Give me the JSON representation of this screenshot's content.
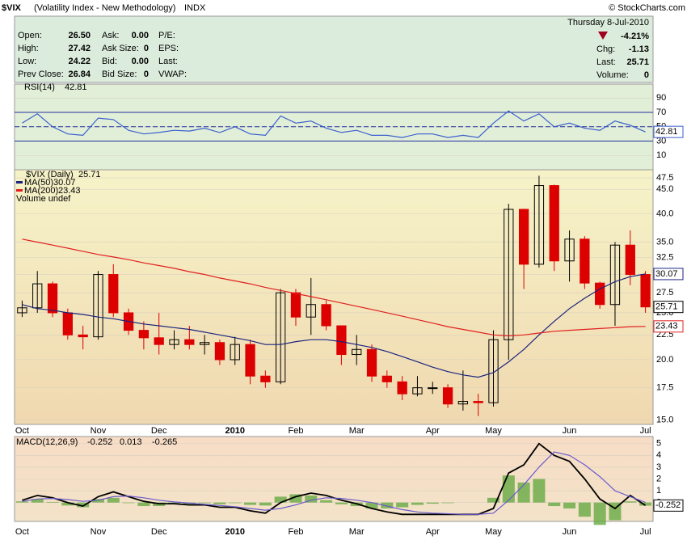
{
  "header": {
    "symbol": "$VIX",
    "name": "(Volatility Index - New Methodology)",
    "exchange": "INDX",
    "credit": "© StockCharts.com"
  },
  "quote": {
    "rows": [
      [
        "Open:",
        "26.50",
        "Ask:",
        "0.00",
        "P/E:"
      ],
      [
        "High:",
        "27.42",
        "Ask Size:",
        "0",
        "EPS:"
      ],
      [
        "Low:",
        "24.22",
        "Bid:",
        "0.00",
        "Last:"
      ],
      [
        "Prev Close:",
        "26.84",
        "Bid Size:",
        "0",
        "VWAP:"
      ]
    ],
    "date": "Thursday  8-Jul-2010",
    "change_pct": "-4.21%",
    "right": [
      [
        "Chg:",
        "-1.13"
      ],
      [
        "Last:",
        "25.71"
      ],
      [
        "Volume:",
        "0"
      ]
    ]
  },
  "chart_data": [
    {
      "type": "line",
      "ylim": [
        -10,
        105
      ],
      "yticks": [
        10,
        30,
        50,
        70,
        90
      ],
      "ref_lines": [
        30,
        50,
        70
      ],
      "series": [
        {
          "name": "RSI(14)",
          "color": "#3a5fcd",
          "values": [
            55,
            68,
            50,
            40,
            38,
            62,
            60,
            45,
            40,
            42,
            45,
            44,
            48,
            42,
            50,
            40,
            38,
            65,
            55,
            58,
            48,
            42,
            45,
            38,
            38,
            35,
            40,
            40,
            35,
            38,
            35,
            55,
            72,
            58,
            68,
            50,
            55,
            48,
            45,
            58,
            52,
            42.81
          ]
        }
      ]
    },
    {
      "type": "candlestick",
      "label": "$VIX (Daily)",
      "log": true,
      "ylim": [
        14.7,
        49
      ],
      "yticks": [
        {
          "value": 15,
          "label": "15.0"
        },
        {
          "value": 17.5,
          "label": "17.5"
        },
        {
          "value": 20,
          "label": "20.0"
        },
        {
          "value": 22.5,
          "label": "22.5"
        },
        {
          "value": 25,
          "label": "25.0"
        },
        {
          "value": 27.5,
          "label": "27.5"
        },
        {
          "value": 30,
          "label": "30.0"
        },
        {
          "value": 32.5,
          "label": "32.5"
        },
        {
          "value": 35,
          "label": "35.0"
        },
        {
          "value": 40,
          "label": "40.0"
        },
        {
          "value": 45,
          "label": "45.0"
        },
        {
          "value": 47.5,
          "label": "47.5"
        }
      ],
      "up_color": "#000000",
      "down_color": "#dd0000",
      "open": [
        25,
        25.6,
        28.7,
        25,
        22.5,
        22.3,
        30,
        25,
        23,
        22.2,
        21.5,
        22,
        21.5,
        21.7,
        20,
        21.5,
        18.5,
        18,
        27.5,
        24.5,
        26,
        23.5,
        20.5,
        21,
        18.5,
        18,
        17,
        17.5,
        17.5,
        16.2,
        16.4,
        16.3,
        22,
        40.9,
        31.5,
        45.8,
        32,
        35.5,
        28.8,
        26,
        34.5,
        30
      ],
      "high": [
        26.5,
        30.5,
        29,
        25.5,
        23.5,
        30.5,
        31.5,
        25.5,
        24,
        25,
        23,
        23.5,
        22.5,
        22,
        22.3,
        22,
        19,
        28,
        28,
        29.5,
        26.5,
        23.5,
        22.5,
        21.5,
        19,
        18.5,
        18.5,
        18,
        17.8,
        19,
        17,
        23,
        42,
        41,
        48,
        46,
        37,
        36,
        29,
        35,
        37,
        30.5
      ],
      "low": [
        24.5,
        25,
        24.5,
        22,
        21,
        22,
        24.5,
        22.5,
        21,
        20.5,
        21,
        21,
        20.5,
        19.5,
        19.5,
        17.8,
        17.5,
        17.8,
        23.5,
        22.5,
        23,
        19.5,
        19.5,
        18,
        17.5,
        16.5,
        16.8,
        17,
        15.9,
        15.7,
        15.3,
        16,
        20,
        28,
        31,
        30.5,
        29,
        28,
        25.5,
        23.5,
        28.5,
        25
      ],
      "close": [
        25.6,
        28.7,
        25,
        22.5,
        22.3,
        30,
        25,
        23,
        22.2,
        21.5,
        22,
        21.5,
        21.7,
        20,
        21.5,
        18.5,
        18,
        27.5,
        24.5,
        26,
        23.5,
        20.5,
        21,
        18.5,
        18,
        17,
        17.5,
        17.5,
        16.2,
        16.4,
        16.3,
        22,
        40.9,
        31.5,
        45.8,
        32,
        35.5,
        28.8,
        26,
        34.5,
        30,
        25.71
      ],
      "series": [
        {
          "name": "MA(50)",
          "color": "#1a237e",
          "values": [
            26,
            25.5,
            25.3,
            25,
            24.8,
            24.5,
            24.3,
            24,
            23.7,
            23.5,
            23.3,
            23.1,
            22.8,
            22.5,
            22.2,
            21.9,
            21.5,
            21.5,
            21.8,
            22,
            22,
            21.8,
            21.5,
            21.2,
            20.8,
            20.3,
            19.8,
            19.3,
            18.9,
            18.6,
            18.4,
            18.8,
            19.8,
            21,
            22.5,
            24,
            25.5,
            26.8,
            28,
            29,
            29.7,
            30.07
          ]
        },
        {
          "name": "MA(200)",
          "color": "#e02020",
          "values": [
            35.5,
            35,
            34.5,
            34,
            33.5,
            33,
            32.6,
            32.2,
            31.7,
            31.3,
            30.9,
            30.4,
            30,
            29.5,
            29.1,
            28.7,
            28.2,
            27.8,
            27.4,
            27,
            26.6,
            26.2,
            25.8,
            25.4,
            25,
            24.6,
            24.2,
            23.8,
            23.4,
            23.1,
            22.8,
            22.5,
            22.4,
            22.5,
            22.7,
            22.9,
            23,
            23.1,
            23.2,
            23.3,
            23.4,
            23.43
          ]
        }
      ],
      "extra_legend": "Volume undef",
      "x_labels": [
        {
          "index": 0,
          "label": "Oct"
        },
        {
          "index": 5,
          "label": "Nov"
        },
        {
          "index": 9,
          "label": "Dec"
        },
        {
          "index": 14,
          "label": "2010"
        },
        {
          "index": 18,
          "label": "Feb"
        },
        {
          "index": 22,
          "label": "Mar"
        },
        {
          "index": 27,
          "label": "Apr"
        },
        {
          "index": 31,
          "label": "May"
        },
        {
          "index": 36,
          "label": "Jun"
        },
        {
          "index": 41,
          "label": "Jul"
        }
      ]
    },
    {
      "type": "line",
      "label": "MACD(12,26,9)",
      "ylim": [
        -1.6,
        5.6
      ],
      "yticks": [
        0,
        1,
        2,
        3,
        4,
        5
      ],
      "series": [
        {
          "color": "#000000",
          "values": [
            0.2,
            0.6,
            0.4,
            0,
            -0.3,
            0.5,
            0.9,
            0.5,
            0.1,
            -0.1,
            -0.1,
            -0.2,
            -0.2,
            -0.4,
            -0.4,
            -0.7,
            -0.9,
            0,
            0.5,
            0.8,
            0.6,
            0.2,
            -0.1,
            -0.5,
            -0.8,
            -1.0,
            -1.0,
            -1.0,
            -1.0,
            -1.0,
            -1.0,
            -0.5,
            2.5,
            3.2,
            5.0,
            4.0,
            3.5,
            2.0,
            0.3,
            -0.5,
            0.6,
            -0.252
          ]
        },
        {
          "color": "#6a5acd",
          "values": [
            0.1,
            0.3,
            0.35,
            0.25,
            0.1,
            0.2,
            0.5,
            0.55,
            0.4,
            0.2,
            0.05,
            -0.05,
            -0.15,
            -0.25,
            -0.35,
            -0.5,
            -0.65,
            -0.5,
            -0.2,
            0.2,
            0.4,
            0.35,
            0.2,
            0,
            -0.3,
            -0.6,
            -0.8,
            -0.9,
            -0.95,
            -1.0,
            -1.0,
            -0.9,
            0.2,
            1.5,
            3.0,
            4.3,
            4.0,
            3.2,
            2.2,
            1.0,
            0.5,
            0.013
          ]
        },
        {
          "color": "#66aa44",
          "style": "bar",
          "values": [
            0.1,
            0.3,
            0.05,
            -0.25,
            -0.4,
            0.3,
            0.4,
            -0.05,
            -0.3,
            -0.3,
            -0.15,
            -0.15,
            -0.05,
            -0.15,
            -0.05,
            -0.2,
            -0.25,
            0.5,
            0.7,
            0.6,
            0.2,
            -0.15,
            -0.3,
            -0.5,
            -0.5,
            -0.4,
            -0.2,
            -0.1,
            -0.05,
            0,
            0,
            0.4,
            2.3,
            1.7,
            2.0,
            -0.3,
            -0.5,
            -1.2,
            -1.9,
            -1.5,
            0.1,
            -0.265
          ]
        }
      ]
    }
  ]
}
